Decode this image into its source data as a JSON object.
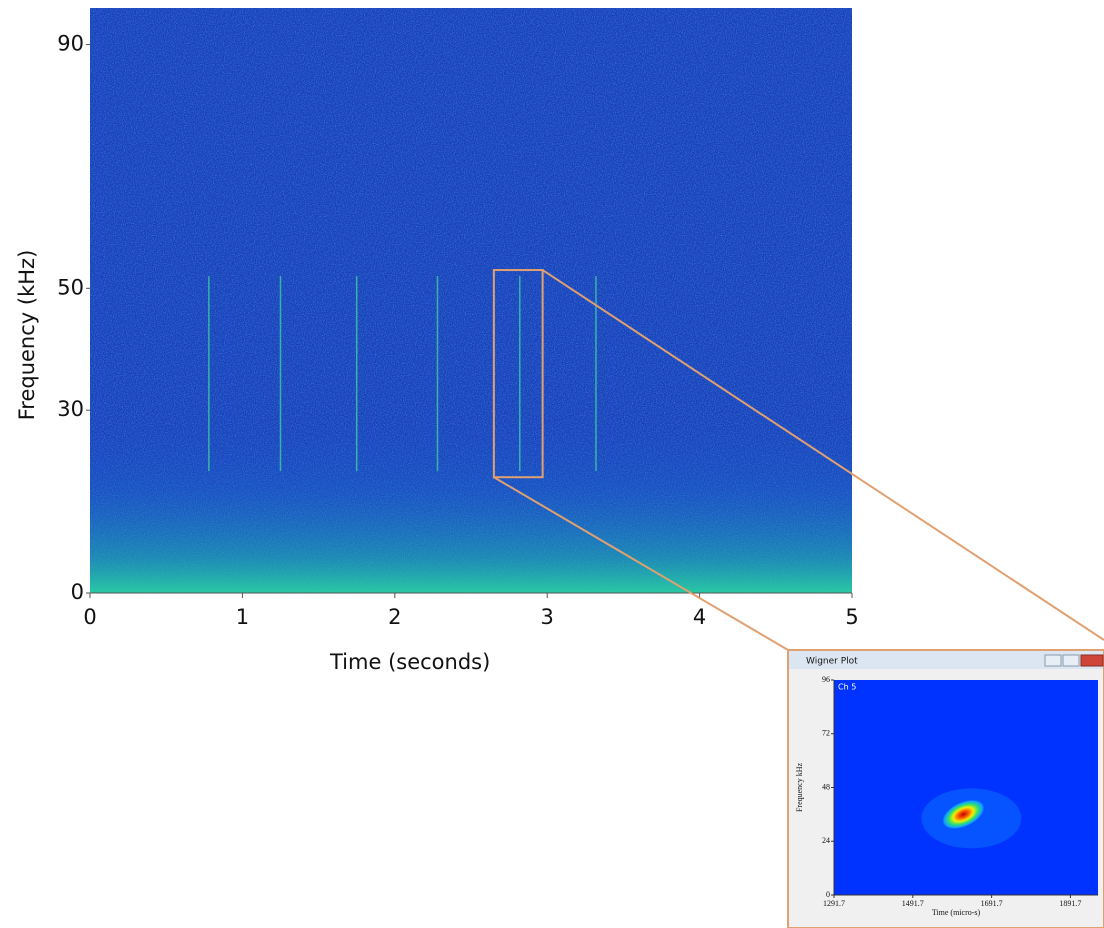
{
  "chart_data": [
    {
      "type": "spectrogram",
      "xlabel": "Time (seconds)",
      "ylabel": "Frequency (kHz)",
      "xlim": [
        0,
        5
      ],
      "ylim": [
        0,
        96
      ],
      "xticks": [
        0,
        1,
        2,
        3,
        4,
        5
      ],
      "yticks": [
        0,
        30,
        50,
        90
      ],
      "calls": [
        0.78,
        1.25,
        1.75,
        2.28,
        2.82,
        3.32
      ],
      "selection": {
        "x": [
          2.65,
          2.97
        ],
        "y": [
          19,
          53
        ]
      },
      "color": "#e0a070"
    },
    {
      "type": "wigner",
      "window_title": "Wigner Plot",
      "channel": "Ch 5",
      "xlabel": "Time (micro-s)",
      "ylabel": "Frequency kHz",
      "xlim": [
        1291.7,
        1961.7
      ],
      "ylim": [
        0,
        96
      ],
      "xticks": [
        1291.7,
        1491.7,
        1691.7,
        1891.7
      ],
      "yticks": [
        0,
        24,
        48,
        72,
        96
      ],
      "peak": {
        "x": 1620,
        "y": 36
      }
    }
  ]
}
